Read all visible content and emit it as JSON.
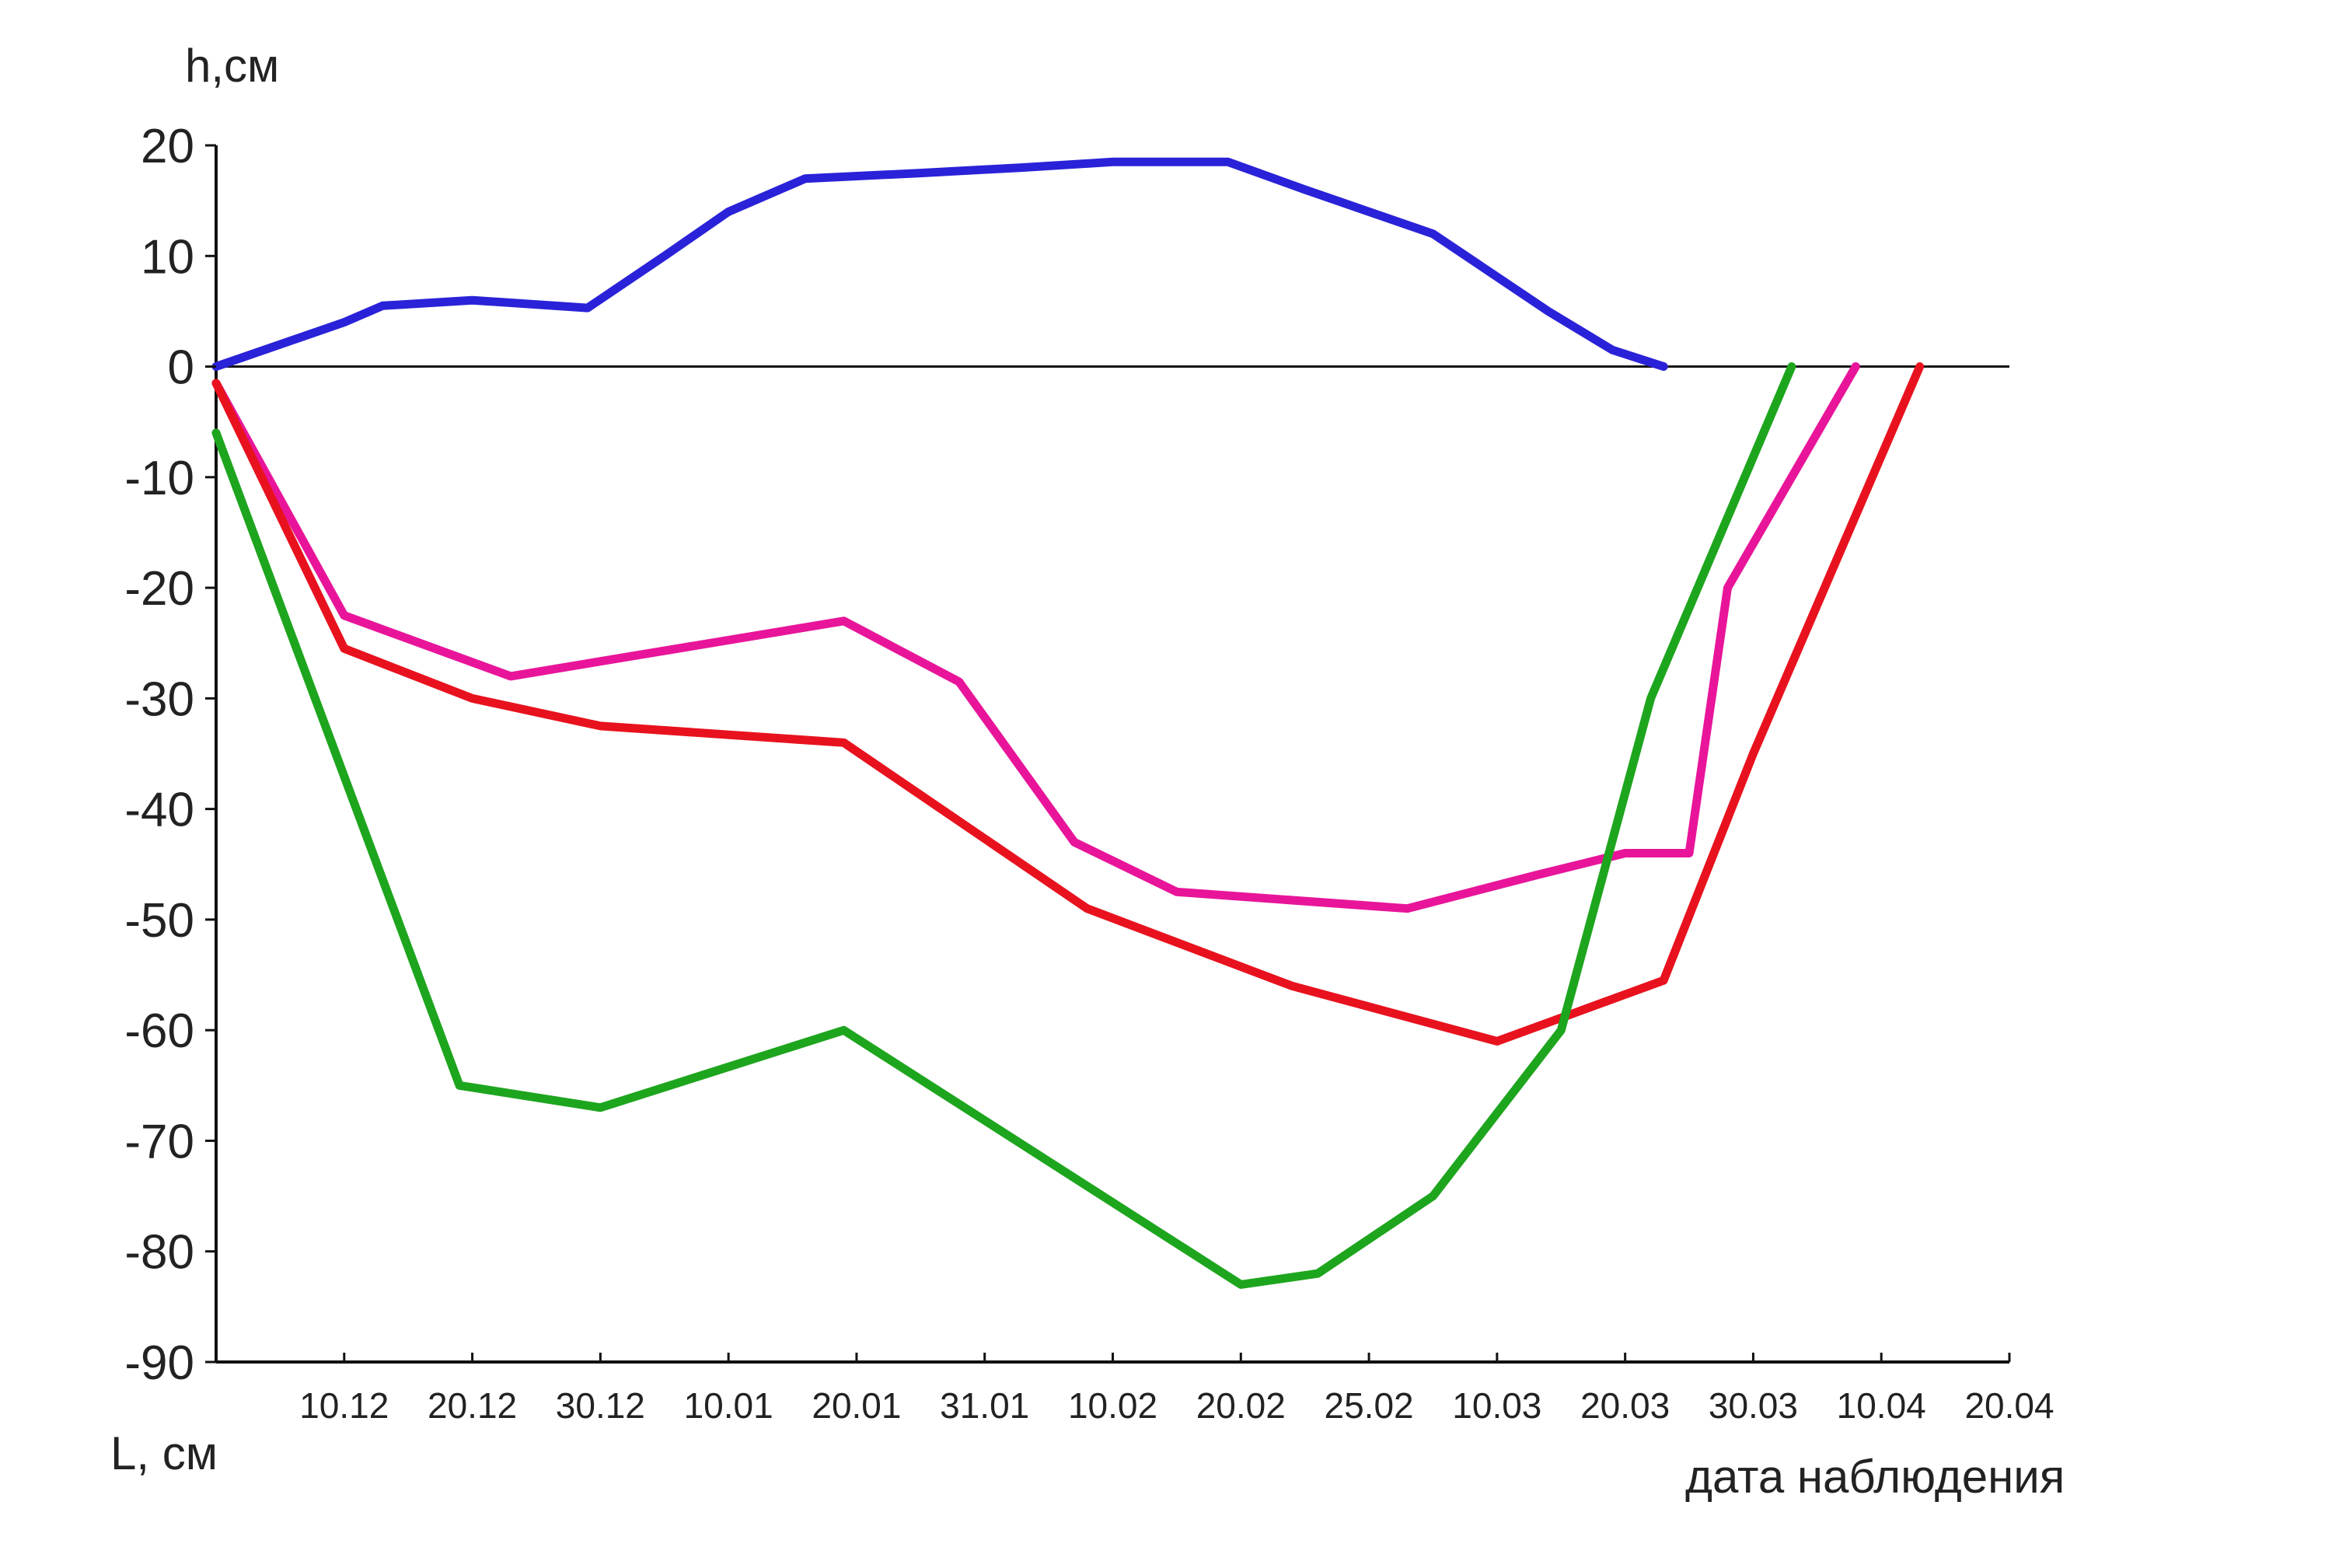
{
  "chart_data": {
    "type": "line",
    "ylabel": "h,см",
    "ylabel_bottom": "L, см",
    "xlabel": "дата наблюдения",
    "ylim": [
      -90,
      20
    ],
    "yticks": [
      20,
      10,
      0,
      -10,
      -20,
      -30,
      -40,
      -50,
      -60,
      -70,
      -80,
      -90
    ],
    "xlim": [
      0,
      14
    ],
    "x_tick_labels": [
      "10.12",
      "20.12",
      "30.12",
      "10.01",
      "20.01",
      "31.01",
      "10.02",
      "20.02",
      "25.02",
      "10.03",
      "20.03",
      "30.03",
      "10.04",
      "20.04"
    ],
    "zero_line": true,
    "grid": false,
    "series": [
      {
        "color": "#2a22d8",
        "points": [
          [
            0,
            0
          ],
          [
            1,
            4
          ],
          [
            1.3,
            5.5
          ],
          [
            2,
            6
          ],
          [
            2.9,
            5.3
          ],
          [
            3.5,
            10
          ],
          [
            4,
            14
          ],
          [
            4.6,
            17
          ],
          [
            5.5,
            17.5
          ],
          [
            6.3,
            18
          ],
          [
            7,
            18.5
          ],
          [
            7.9,
            18.5
          ],
          [
            8.5,
            16
          ],
          [
            9.5,
            12
          ],
          [
            10.4,
            5
          ],
          [
            10.9,
            1.5
          ],
          [
            11.3,
            0
          ]
        ]
      },
      {
        "color": "#e8159a",
        "points": [
          [
            0,
            -1.5
          ],
          [
            1,
            -22.5
          ],
          [
            2.3,
            -28
          ],
          [
            4.9,
            -23
          ],
          [
            5.8,
            -28.5
          ],
          [
            6.7,
            -43
          ],
          [
            7.5,
            -47.5
          ],
          [
            9.3,
            -49
          ],
          [
            10.3,
            -46
          ],
          [
            11,
            -44
          ],
          [
            11.5,
            -44
          ],
          [
            11.8,
            -20
          ],
          [
            12.8,
            0
          ]
        ]
      },
      {
        "color": "#e8121e",
        "points": [
          [
            0,
            -1.5
          ],
          [
            1,
            -25.5
          ],
          [
            2,
            -30
          ],
          [
            3,
            -32.5
          ],
          [
            4.9,
            -34
          ],
          [
            6.8,
            -49
          ],
          [
            8.4,
            -56
          ],
          [
            10,
            -61
          ],
          [
            11.3,
            -55.5
          ],
          [
            12,
            -35
          ],
          [
            13.3,
            0
          ]
        ]
      },
      {
        "color": "#1ea51e",
        "points": [
          [
            0,
            -6
          ],
          [
            1.9,
            -65
          ],
          [
            3,
            -67
          ],
          [
            4.9,
            -60
          ],
          [
            8,
            -83
          ],
          [
            8.6,
            -82
          ],
          [
            9.5,
            -75
          ],
          [
            10.5,
            -60
          ],
          [
            11.2,
            -30
          ],
          [
            12.3,
            0
          ]
        ]
      }
    ]
  }
}
